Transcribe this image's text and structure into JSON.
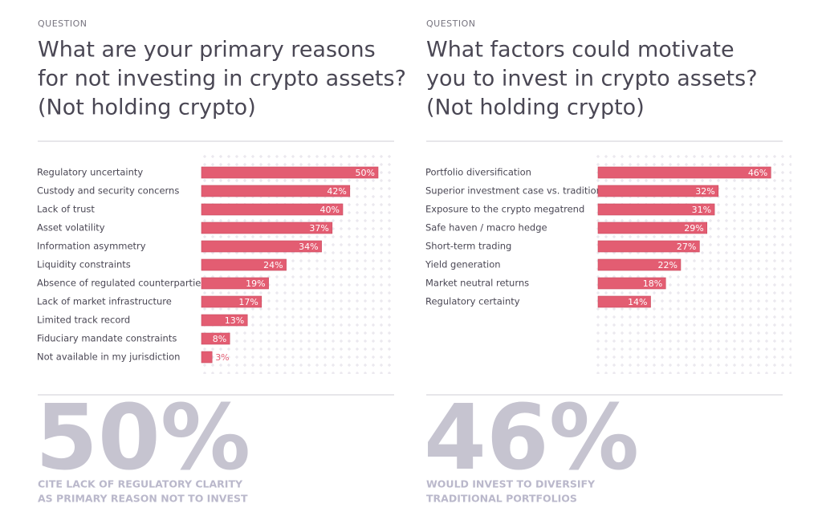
{
  "chart_data": [
    {
      "type": "bar",
      "label": "QUESTION",
      "title": [
        "What are your primary reasons",
        "for not investing in crypto assets?",
        "(Not holding crypto)"
      ],
      "categories": [
        "Regulatory uncertainty",
        "Custody and security concerns",
        "Lack of trust",
        "Asset volatility",
        "Information asymmetry",
        "Liquidity constraints",
        "Absence of regulated counterparties",
        "Lack of market infrastructure",
        "Limited track record",
        "Fiduciary mandate constraints",
        "Not available in my jurisdiction"
      ],
      "values": [
        50,
        42,
        40,
        37,
        34,
        24,
        19,
        17,
        13,
        8,
        3
      ],
      "value_labels": [
        "50%",
        "42%",
        "40%",
        "37%",
        "34%",
        "24%",
        "19%",
        "17%",
        "13%",
        "8%",
        "3%"
      ],
      "color": "#e35d72",
      "xlim": [
        0,
        50
      ],
      "stat": "50%",
      "caption": [
        "CITE LACK OF REGULATORY CLARITY",
        "AS PRIMARY REASON NOT TO INVEST"
      ]
    },
    {
      "type": "bar",
      "label": "QUESTION",
      "title": [
        "What factors could motivate",
        "you to invest in crypto assets?",
        "(Not holding crypto)"
      ],
      "categories": [
        "Portfolio diversification",
        "Superior investment case vs. traditional",
        "Exposure to the crypto megatrend",
        "Safe haven / macro hedge",
        "Short-term trading",
        "Yield generation",
        "Market neutral returns",
        "Regulatory certainty"
      ],
      "values": [
        46,
        32,
        31,
        29,
        27,
        22,
        18,
        14
      ],
      "value_labels": [
        "46%",
        "32%",
        "31%",
        "29%",
        "27%",
        "22%",
        "18%",
        "14%"
      ],
      "color": "#e35d72",
      "xlim": [
        0,
        50
      ],
      "stat": "46%",
      "caption": [
        "WOULD INVEST TO DIVERSIFY",
        "TRADITIONAL PORTFOLIOS"
      ]
    }
  ]
}
